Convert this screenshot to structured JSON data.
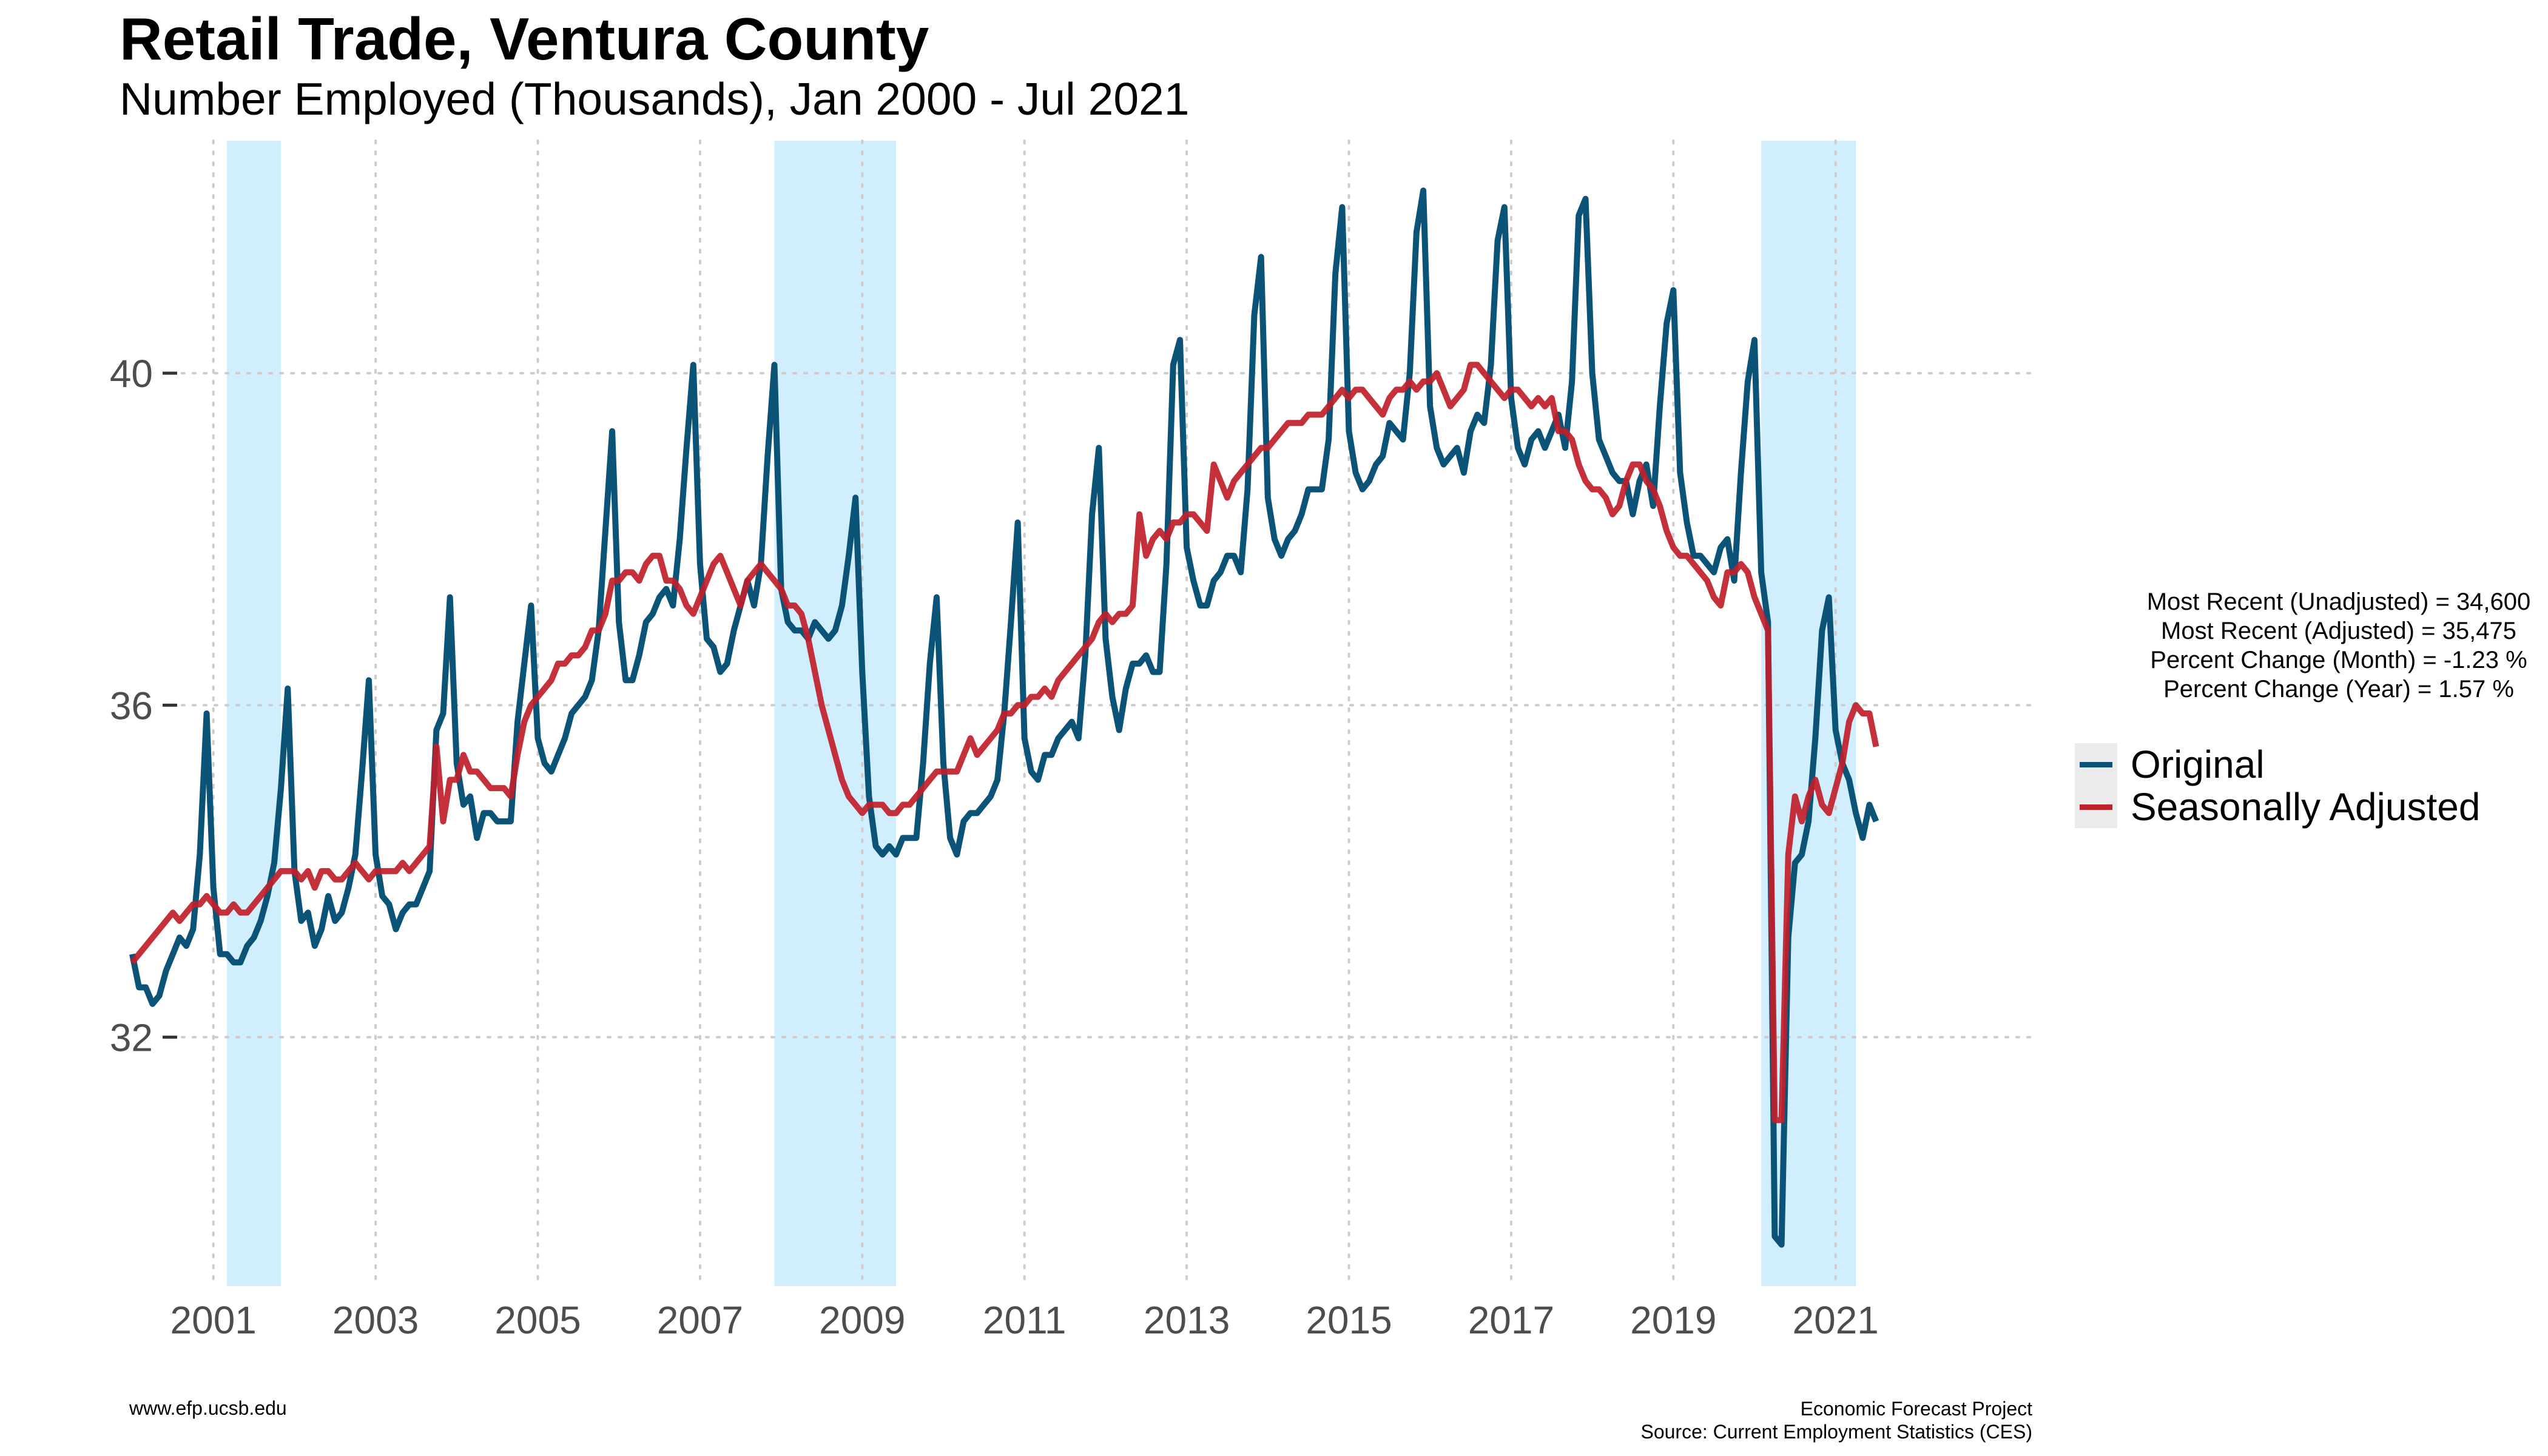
{
  "title": "Retail Trade, Ventura County",
  "subtitle": "Number Employed (Thousands), Jan 2000 - Jul 2021",
  "stats": {
    "line1": "Most Recent (Unadjusted) = 34,600",
    "line2": "Most Recent (Adjusted) = 35,475",
    "line3": "Percent Change (Month) = -1.23 %",
    "line4": "Percent Change (Year) = 1.57 %"
  },
  "footer": {
    "left": "www.efp.ucsb.edu",
    "right_line1": "Economic Forecast Project",
    "right_line2": "Source: Current Employment Statistics (CES)"
  },
  "colors": {
    "original": "#0b5377",
    "adjusted": "#c0202a",
    "recession": "#d0eefd"
  },
  "chart_data": {
    "type": "line",
    "title": "Retail Trade, Ventura County",
    "subtitle": "Number Employed (Thousands), Jan 2000 - Jul 2021",
    "xlabel": "",
    "ylabel": "",
    "x_ticks": [
      "2001",
      "2003",
      "2005",
      "2007",
      "2009",
      "2011",
      "2013",
      "2015",
      "2017",
      "2019",
      "2021"
    ],
    "y_ticks": [
      "32",
      "36",
      "40"
    ],
    "ylim": [
      29,
      42.8
    ],
    "grid": true,
    "legend_position": "right",
    "recession_bands": [
      {
        "start": "2001-03",
        "end": "2001-11"
      },
      {
        "start": "2007-12",
        "end": "2009-06"
      },
      {
        "start": "2020-02",
        "end": "2021-04"
      }
    ],
    "series": [
      {
        "name": "Original",
        "color": "#0b5377",
        "start": "2000-01",
        "frequency": "monthly",
        "values": [
          33.0,
          32.6,
          32.6,
          32.4,
          32.5,
          32.8,
          33.0,
          33.2,
          33.1,
          33.3,
          34.2,
          35.9,
          33.8,
          33.0,
          33.0,
          32.9,
          32.9,
          33.1,
          33.2,
          33.4,
          33.7,
          34.1,
          35.0,
          36.2,
          34.0,
          33.4,
          33.5,
          33.1,
          33.3,
          33.7,
          33.4,
          33.5,
          33.8,
          34.2,
          35.2,
          36.3,
          34.2,
          33.7,
          33.6,
          33.3,
          33.5,
          33.6,
          33.6,
          33.8,
          34.0,
          35.7,
          35.9,
          37.3,
          35.3,
          34.8,
          34.9,
          34.4,
          34.7,
          34.7,
          34.6,
          34.6,
          34.6,
          35.8,
          36.5,
          37.2,
          35.6,
          35.3,
          35.2,
          35.4,
          35.6,
          35.9,
          36.0,
          36.1,
          36.3,
          36.9,
          38.1,
          39.3,
          37.0,
          36.3,
          36.3,
          36.6,
          37.0,
          37.1,
          37.3,
          37.4,
          37.2,
          38.0,
          39.1,
          40.1,
          37.7,
          36.8,
          36.7,
          36.4,
          36.5,
          36.9,
          37.2,
          37.5,
          37.2,
          37.7,
          39.0,
          40.1,
          37.4,
          37.0,
          36.9,
          36.9,
          36.8,
          37.0,
          36.9,
          36.8,
          36.9,
          37.2,
          37.8,
          38.5,
          36.4,
          34.9,
          34.3,
          34.2,
          34.3,
          34.2,
          34.4,
          34.4,
          34.4,
          35.3,
          36.5,
          37.3,
          35.3,
          34.4,
          34.2,
          34.6,
          34.7,
          34.7,
          34.8,
          34.9,
          35.1,
          35.9,
          37.0,
          38.2,
          35.6,
          35.2,
          35.1,
          35.4,
          35.4,
          35.6,
          35.7,
          35.8,
          35.6,
          36.6,
          38.3,
          39.1,
          36.8,
          36.1,
          35.7,
          36.2,
          36.5,
          36.5,
          36.6,
          36.4,
          36.4,
          37.7,
          40.1,
          40.4,
          37.9,
          37.5,
          37.2,
          37.2,
          37.5,
          37.6,
          37.8,
          37.8,
          37.6,
          38.6,
          40.7,
          41.4,
          38.5,
          38.0,
          37.8,
          38.0,
          38.1,
          38.3,
          38.6,
          38.6,
          38.6,
          39.2,
          41.2,
          42.0,
          39.3,
          38.8,
          38.6,
          38.7,
          38.9,
          39.0,
          39.4,
          39.3,
          39.2,
          40.0,
          41.7,
          42.2,
          39.6,
          39.1,
          38.9,
          39.0,
          39.1,
          38.8,
          39.3,
          39.5,
          39.4,
          40.1,
          41.6,
          42.0,
          39.7,
          39.1,
          38.9,
          39.2,
          39.3,
          39.1,
          39.3,
          39.5,
          39.1,
          39.9,
          41.9,
          42.1,
          40.0,
          39.2,
          39.0,
          38.8,
          38.7,
          38.7,
          38.3,
          38.7,
          38.9,
          38.4,
          39.6,
          40.6,
          41.0,
          38.8,
          38.2,
          37.8,
          37.8,
          37.7,
          37.6,
          37.9,
          38.0,
          37.5,
          38.8,
          39.9,
          40.4,
          37.6,
          37.0,
          29.6,
          29.5,
          33.2,
          34.1,
          34.2,
          34.6,
          35.6,
          36.9,
          37.3,
          35.7,
          35.3,
          35.1,
          34.7,
          34.4,
          34.8,
          34.6
        ]
      },
      {
        "name": "Seasonally Adjusted",
        "color": "#c0202a",
        "start": "2000-01",
        "frequency": "monthly",
        "values": [
          32.9,
          33.0,
          33.1,
          33.2,
          33.3,
          33.4,
          33.5,
          33.4,
          33.5,
          33.6,
          33.6,
          33.7,
          33.6,
          33.5,
          33.5,
          33.6,
          33.5,
          33.5,
          33.6,
          33.7,
          33.8,
          33.9,
          34.0,
          34.0,
          34.0,
          33.9,
          34.0,
          33.8,
          34.0,
          34.0,
          33.9,
          33.9,
          34.0,
          34.1,
          34.0,
          33.9,
          34.0,
          34.0,
          34.0,
          34.0,
          34.1,
          34.0,
          34.1,
          34.2,
          34.3,
          35.5,
          34.6,
          35.1,
          35.1,
          35.4,
          35.2,
          35.2,
          35.1,
          35.0,
          35.0,
          35.0,
          34.9,
          35.4,
          35.8,
          36.0,
          36.1,
          36.2,
          36.3,
          36.5,
          36.5,
          36.6,
          36.6,
          36.7,
          36.9,
          36.9,
          37.1,
          37.5,
          37.5,
          37.6,
          37.6,
          37.5,
          37.7,
          37.8,
          37.8,
          37.5,
          37.5,
          37.4,
          37.2,
          37.1,
          37.3,
          37.5,
          37.7,
          37.8,
          37.6,
          37.4,
          37.2,
          37.5,
          37.6,
          37.7,
          37.6,
          37.5,
          37.4,
          37.2,
          37.2,
          37.1,
          36.8,
          36.4,
          36.0,
          35.7,
          35.4,
          35.1,
          34.9,
          34.8,
          34.7,
          34.8,
          34.8,
          34.8,
          34.7,
          34.7,
          34.8,
          34.8,
          34.9,
          35.0,
          35.1,
          35.2,
          35.2,
          35.2,
          35.2,
          35.4,
          35.6,
          35.4,
          35.5,
          35.6,
          35.7,
          35.9,
          35.9,
          36.0,
          36.0,
          36.1,
          36.1,
          36.2,
          36.1,
          36.3,
          36.4,
          36.5,
          36.6,
          36.7,
          36.8,
          37.0,
          37.1,
          37.0,
          37.1,
          37.1,
          37.2,
          38.3,
          37.8,
          38.0,
          38.1,
          38.0,
          38.2,
          38.2,
          38.3,
          38.3,
          38.2,
          38.1,
          38.9,
          38.7,
          38.5,
          38.7,
          38.8,
          38.9,
          39.0,
          39.1,
          39.1,
          39.2,
          39.3,
          39.4,
          39.4,
          39.4,
          39.5,
          39.5,
          39.5,
          39.6,
          39.7,
          39.8,
          39.7,
          39.8,
          39.8,
          39.7,
          39.6,
          39.5,
          39.7,
          39.8,
          39.8,
          39.9,
          39.8,
          39.9,
          39.9,
          40.0,
          39.8,
          39.6,
          39.7,
          39.8,
          40.1,
          40.1,
          40.0,
          39.9,
          39.8,
          39.7,
          39.8,
          39.8,
          39.7,
          39.6,
          39.7,
          39.6,
          39.7,
          39.3,
          39.3,
          39.2,
          38.9,
          38.7,
          38.6,
          38.6,
          38.5,
          38.3,
          38.4,
          38.7,
          38.9,
          38.9,
          38.7,
          38.6,
          38.4,
          38.1,
          37.9,
          37.8,
          37.8,
          37.7,
          37.6,
          37.5,
          37.3,
          37.2,
          37.6,
          37.6,
          37.7,
          37.6,
          37.3,
          37.1,
          36.9,
          31.0,
          31.0,
          34.2,
          34.9,
          34.6,
          34.9,
          35.1,
          34.8,
          34.7,
          35.0,
          35.3,
          35.8,
          36.0,
          35.9,
          35.9,
          35.5
        ]
      }
    ]
  }
}
